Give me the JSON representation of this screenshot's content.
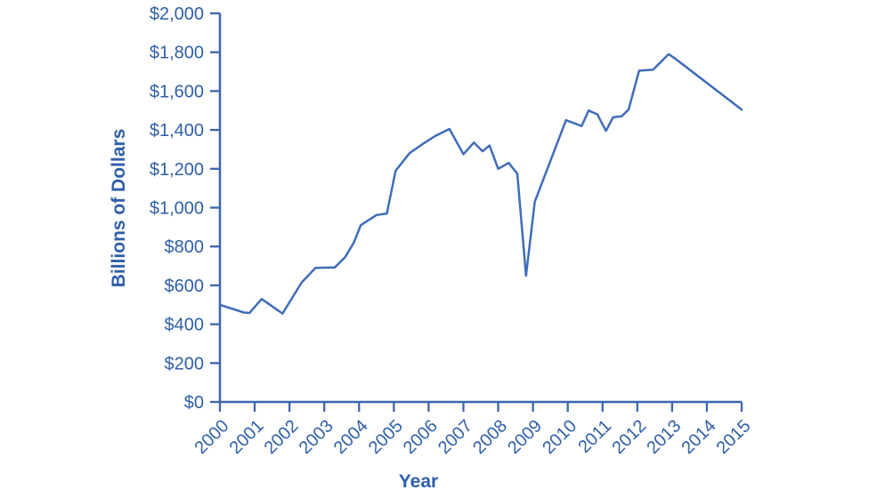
{
  "chart_data": {
    "type": "line",
    "title": "",
    "xlabel": "Year",
    "ylabel": "Billions of Dollars",
    "xlim": [
      2000,
      2015
    ],
    "ylim": [
      0,
      2000
    ],
    "ytick_step": 200,
    "grid": false,
    "legend": "none",
    "ytick_labels": [
      "$0",
      "$200",
      "$400",
      "$600",
      "$800",
      "$1,000",
      "$1,200",
      "$1,400",
      "$1,600",
      "$1,800",
      "$2,000"
    ],
    "xtick_labels": [
      "2000",
      "2001",
      "2002",
      "2003",
      "2004",
      "2005",
      "2006",
      "2007",
      "2008",
      "2009",
      "2010",
      "2011",
      "2012",
      "2013",
      "2014",
      "2015"
    ],
    "colors": {
      "line": "#3f6db8",
      "axis": "#3a66ae",
      "text": "#2f5fa7"
    },
    "series": [
      {
        "name": "billions-of-dollars",
        "points": [
          [
            2000.0,
            500
          ],
          [
            2000.7,
            460
          ],
          [
            2000.85,
            458
          ],
          [
            2001.2,
            530
          ],
          [
            2001.8,
            455
          ],
          [
            2002.35,
            615
          ],
          [
            2002.75,
            690
          ],
          [
            2003.3,
            692
          ],
          [
            2003.6,
            745
          ],
          [
            2003.85,
            820
          ],
          [
            2004.05,
            910
          ],
          [
            2004.5,
            962
          ],
          [
            2004.8,
            970
          ],
          [
            2005.05,
            1190
          ],
          [
            2005.45,
            1280
          ],
          [
            2005.85,
            1330
          ],
          [
            2006.2,
            1370
          ],
          [
            2006.6,
            1405
          ],
          [
            2007.0,
            1275
          ],
          [
            2007.3,
            1335
          ],
          [
            2007.55,
            1290
          ],
          [
            2007.75,
            1320
          ],
          [
            2008.0,
            1200
          ],
          [
            2008.3,
            1230
          ],
          [
            2008.55,
            1175
          ],
          [
            2008.8,
            650
          ],
          [
            2009.05,
            1030
          ],
          [
            2009.95,
            1450
          ],
          [
            2010.4,
            1420
          ],
          [
            2010.6,
            1500
          ],
          [
            2010.85,
            1480
          ],
          [
            2011.1,
            1395
          ],
          [
            2011.3,
            1465
          ],
          [
            2011.55,
            1470
          ],
          [
            2011.75,
            1505
          ],
          [
            2012.05,
            1705
          ],
          [
            2012.45,
            1710
          ],
          [
            2012.9,
            1790
          ],
          [
            2013.1,
            1765
          ],
          [
            2015.0,
            1505
          ]
        ]
      }
    ]
  }
}
